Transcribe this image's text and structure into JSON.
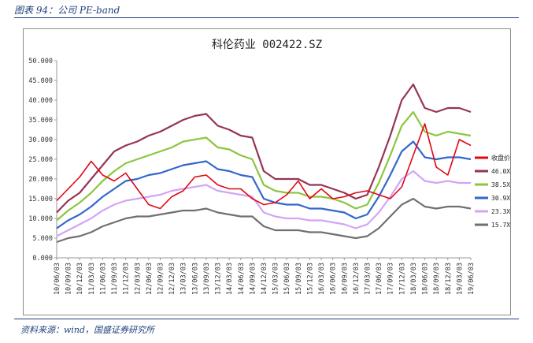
{
  "figure": {
    "caption": "图表 94：公司 PE-band",
    "source": "资料来源：wind，国盛证券研究所"
  },
  "chart_data": {
    "type": "line",
    "title": "科伦药业 002422.SZ",
    "ylim": [
      0,
      50
    ],
    "yticks": [
      "0.000",
      "5.000",
      "10.000",
      "15.000",
      "20.000",
      "25.000",
      "30.000",
      "35.000",
      "40.000",
      "45.000",
      "50.000"
    ],
    "xticks": [
      "10/06/03",
      "10/09/03",
      "10/12/03",
      "11/03/03",
      "11/06/03",
      "11/09/03",
      "11/12/03",
      "12/03/03",
      "12/06/03",
      "12/09/03",
      "12/12/03",
      "13/03/03",
      "13/06/03",
      "13/09/03",
      "13/12/03",
      "14/03/03",
      "14/06/03",
      "14/09/03",
      "14/12/03",
      "15/03/03",
      "15/06/03",
      "15/09/03",
      "15/12/03",
      "16/03/03",
      "16/06/03",
      "16/09/03",
      "16/12/03",
      "17/03/03",
      "17/06/03",
      "17/09/03",
      "17/12/03",
      "18/03/03",
      "18/06/03",
      "18/09/03",
      "18/12/03",
      "19/03/03",
      "19/06/03"
    ],
    "grid": false,
    "legend_position": "right",
    "series": [
      {
        "name": "收盘价",
        "color": "#e30613",
        "values": [
          14.5,
          17.5,
          20.5,
          24.5,
          21.0,
          19.5,
          21.5,
          17.5,
          13.5,
          12.5,
          15.5,
          17.0,
          20.5,
          21.0,
          18.5,
          17.5,
          17.5,
          15.0,
          13.5,
          14.0,
          16.0,
          19.5,
          15.0,
          17.5,
          15.0,
          15.5,
          16.5,
          17.0,
          16.0,
          15.0,
          18.0,
          26.0,
          34.0,
          23.0,
          21.0,
          30.0,
          28.5
        ]
      },
      {
        "name": "46.0X",
        "color": "#953553",
        "values": [
          11.5,
          14.5,
          16.5,
          20.0,
          23.5,
          27.0,
          28.5,
          29.5,
          31.0,
          32.0,
          33.5,
          35.0,
          36.0,
          36.5,
          33.5,
          32.5,
          31.0,
          30.5,
          22.0,
          20.0,
          20.0,
          20.0,
          18.5,
          18.5,
          17.5,
          16.5,
          15.0,
          16.0,
          23.0,
          31.0,
          40.0,
          44.0,
          38.0,
          37.0,
          38.0,
          38.0,
          37.0
        ]
      },
      {
        "name": "38.5X",
        "color": "#8cc63f",
        "values": [
          9.5,
          12.0,
          14.0,
          16.5,
          19.5,
          22.0,
          24.0,
          25.0,
          26.0,
          27.0,
          28.0,
          29.5,
          30.0,
          30.5,
          28.0,
          27.5,
          26.0,
          25.0,
          18.5,
          17.0,
          16.5,
          16.5,
          15.5,
          15.5,
          15.0,
          14.0,
          12.5,
          13.5,
          19.0,
          26.0,
          33.5,
          37.0,
          32.0,
          31.0,
          32.0,
          31.5,
          31.0
        ]
      },
      {
        "name": "30.9X",
        "color": "#3366cc",
        "values": [
          7.5,
          9.5,
          11.0,
          13.0,
          15.5,
          17.5,
          19.5,
          20.0,
          21.0,
          21.5,
          22.5,
          23.5,
          24.0,
          24.5,
          22.5,
          22.0,
          21.0,
          20.5,
          15.0,
          14.0,
          13.5,
          13.5,
          12.5,
          12.5,
          12.0,
          11.5,
          10.0,
          11.0,
          15.5,
          21.0,
          27.0,
          29.5,
          25.5,
          25.0,
          25.5,
          25.5,
          25.0
        ]
      },
      {
        "name": "23.3X",
        "color": "#d3a4f5",
        "values": [
          5.5,
          7.0,
          8.5,
          10.0,
          12.0,
          13.5,
          14.5,
          15.0,
          15.5,
          16.0,
          17.0,
          17.5,
          18.0,
          18.5,
          17.0,
          16.5,
          16.0,
          15.5,
          11.5,
          10.5,
          10.0,
          10.0,
          9.5,
          9.5,
          9.0,
          8.5,
          7.5,
          8.5,
          11.5,
          15.5,
          20.0,
          22.0,
          19.5,
          19.0,
          19.5,
          19.0,
          19.0
        ]
      },
      {
        "name": "15.7X",
        "color": "#707070",
        "values": [
          4.0,
          5.0,
          5.5,
          6.5,
          8.0,
          9.0,
          10.0,
          10.5,
          10.5,
          11.0,
          11.5,
          12.0,
          12.0,
          12.5,
          11.5,
          11.0,
          10.5,
          10.5,
          8.0,
          7.0,
          7.0,
          7.0,
          6.5,
          6.5,
          6.0,
          5.5,
          5.0,
          5.5,
          7.5,
          10.5,
          13.5,
          15.0,
          13.0,
          12.5,
          13.0,
          13.0,
          12.5
        ]
      }
    ]
  }
}
